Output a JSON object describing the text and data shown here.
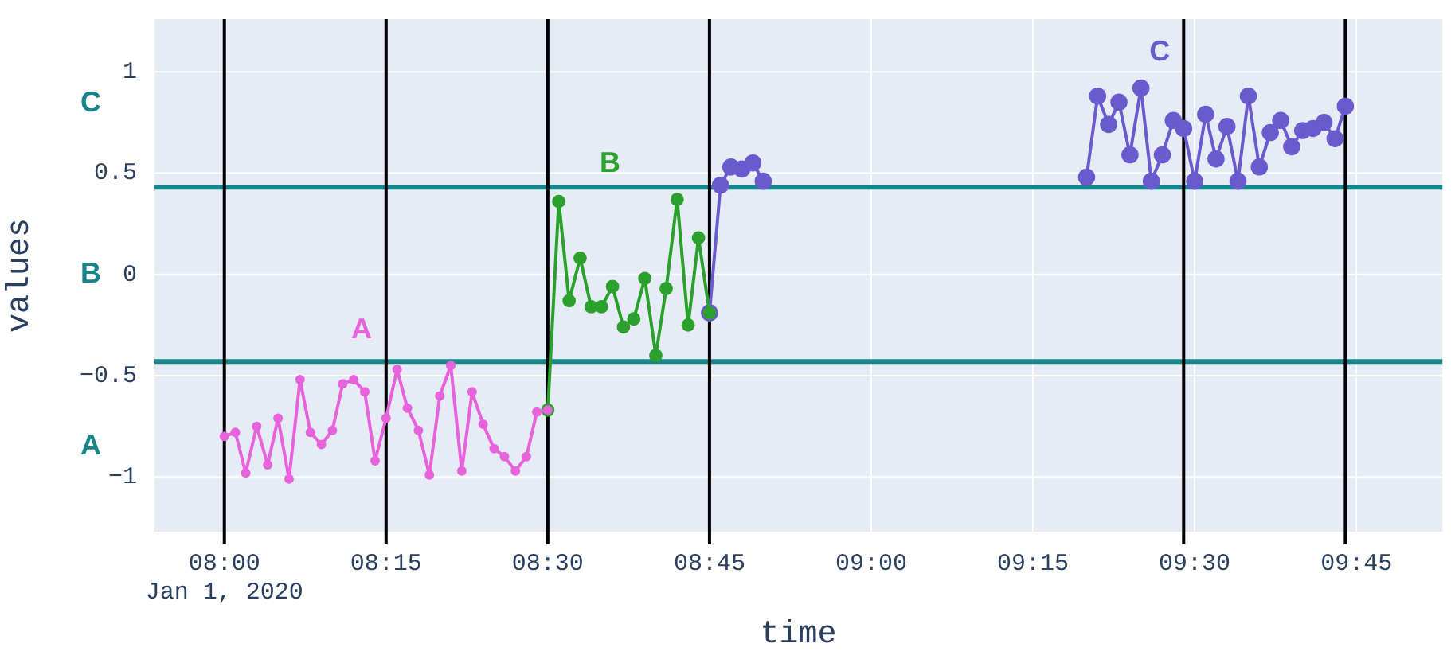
{
  "chart_data": {
    "type": "line",
    "xlabel": "time",
    "ylabel": "values",
    "xlim": [
      7.892,
      9.883
    ],
    "xticks": [
      {
        "value": 8,
        "label": "08:00\nJan 1, 2020"
      },
      {
        "value": 8.25,
        "label": "08:15"
      },
      {
        "value": 8.5,
        "label": "08:30"
      },
      {
        "value": 8.75,
        "label": "08:45"
      },
      {
        "value": 9,
        "label": "09:00"
      },
      {
        "value": 9.25,
        "label": "09:15"
      },
      {
        "value": 9.5,
        "label": "09:30"
      },
      {
        "value": 9.75,
        "label": "09:45"
      }
    ],
    "ylim": [
      -1.27,
      1.26
    ],
    "yticks": [
      -1,
      -0.5,
      0,
      0.5,
      1
    ],
    "grid": true,
    "marker": "circle",
    "line_style": "solid",
    "series": [
      {
        "name": "A",
        "color": "#e763dc",
        "x": [
          8,
          8.017,
          8.033,
          8.05,
          8.067,
          8.083,
          8.1,
          8.117,
          8.133,
          8.15,
          8.167,
          8.183,
          8.2,
          8.217,
          8.233,
          8.25,
          8.267,
          8.283,
          8.3,
          8.317,
          8.333,
          8.35,
          8.367,
          8.383,
          8.4,
          8.417,
          8.433,
          8.45,
          8.467,
          8.483,
          8.5
        ],
        "values": [
          -0.8,
          -0.78,
          -0.98,
          -0.75,
          -0.94,
          -0.71,
          -1.01,
          -0.52,
          -0.78,
          -0.84,
          -0.77,
          -0.54,
          -0.52,
          -0.58,
          -0.92,
          -0.71,
          -0.47,
          -0.66,
          -0.77,
          -0.99,
          -0.6,
          -0.45,
          -0.97,
          -0.58,
          -0.74,
          -0.86,
          -0.9,
          -0.97,
          -0.9,
          -0.68,
          -0.67
        ]
      },
      {
        "name": "B",
        "color": "#2ca02c",
        "x": [
          8.5,
          8.517,
          8.533,
          8.55,
          8.567,
          8.583,
          8.6,
          8.617,
          8.633,
          8.65,
          8.667,
          8.683,
          8.7,
          8.717,
          8.733,
          8.75
        ],
        "values": [
          -0.67,
          0.36,
          -0.13,
          0.08,
          -0.16,
          -0.16,
          -0.06,
          -0.26,
          -0.22,
          -0.02,
          -0.4,
          -0.07,
          0.37,
          -0.25,
          0.18,
          -0.19
        ]
      },
      {
        "name": "C",
        "color": "#6a5acd",
        "x": [
          8.75,
          8.767,
          8.783,
          8.8,
          8.817,
          8.833,
          9.083,
          9.333,
          9.35,
          9.367,
          9.383,
          9.4,
          9.417,
          9.433,
          9.45,
          9.467,
          9.483,
          9.5,
          9.517,
          9.533,
          9.55,
          9.567,
          9.583,
          9.6,
          9.617,
          9.633,
          9.65,
          9.667,
          9.683,
          9.7,
          9.717,
          9.733
        ],
        "values": [
          -0.19,
          0.44,
          0.53,
          0.52,
          0.55,
          0.46,
          null,
          0.48,
          0.88,
          0.74,
          0.85,
          0.59,
          0.92,
          0.46,
          0.59,
          0.76,
          0.72,
          0.46,
          0.79,
          0.57,
          0.73,
          0.46,
          0.88,
          0.53,
          0.7,
          0.76,
          0.63,
          0.71,
          0.72,
          0.75,
          0.67,
          0.83
        ]
      }
    ],
    "ref_lines": [
      {
        "axis": "y",
        "value": 0.43,
        "color": "#17868a"
      },
      {
        "axis": "y",
        "value": -0.43,
        "color": "#17868a"
      },
      {
        "axis": "x",
        "value": 8,
        "color": "#000000"
      },
      {
        "axis": "x",
        "value": 8.25,
        "color": "#000000"
      },
      {
        "axis": "x",
        "value": 8.5,
        "color": "#000000"
      },
      {
        "axis": "x",
        "value": 8.75,
        "color": "#000000"
      },
      {
        "axis": "x",
        "value": 9.483,
        "color": "#000000"
      },
      {
        "axis": "x",
        "value": 9.733,
        "color": "#000000"
      }
    ],
    "annotations": [
      "A",
      "B",
      "C"
    ]
  }
}
